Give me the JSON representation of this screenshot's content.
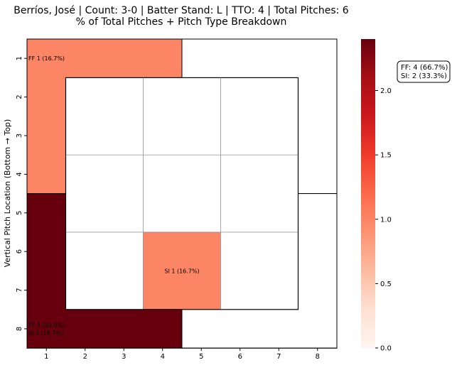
{
  "chart_data": {
    "type": "heatmap",
    "title_line1": "Berríos, José | Count: 3-0 | Batter Stand: L | TTO: 4 | Total Pitches: 6",
    "title_line2": "% of Total Pitches + Pitch Type Breakdown",
    "xlabel": "",
    "ylabel": "Vertical Pitch Location (Bottom → Top)",
    "x_ticks": [
      "1",
      "2",
      "3",
      "4",
      "5",
      "6",
      "7",
      "8"
    ],
    "y_ticks": [
      "1",
      "2",
      "3",
      "4",
      "5",
      "6",
      "7",
      "8"
    ],
    "colormap": "Reds",
    "color_low": "#fff5f0",
    "color_high": "#67000d",
    "colorbar_range": [
      0.0,
      2.4
    ],
    "colorbar_ticks": [
      "0.0",
      "0.5",
      "1.0",
      "1.5",
      "2.0"
    ],
    "zones": [
      {
        "label": "FF 1 (16.7%)",
        "value": 1,
        "region": "top-left outer",
        "cols": [
          1,
          4
        ],
        "rows": [
          1,
          4
        ]
      },
      {
        "label": "",
        "value": 0,
        "region": "top-right outer",
        "cols": [
          5,
          8
        ],
        "rows": [
          1,
          4
        ]
      },
      {
        "label": "FF 3 (50.0%)\nSI 1 (16.7%)",
        "value": 4,
        "region": "bottom-left outer",
        "cols": [
          1,
          4
        ],
        "rows": [
          5,
          8
        ]
      },
      {
        "label": "",
        "value": 0,
        "region": "bottom-right outer",
        "cols": [
          5,
          8
        ],
        "rows": [
          5,
          8
        ]
      },
      {
        "label": "",
        "value": 0,
        "region": "strike zone 1",
        "cols": [
          2,
          3
        ],
        "rows": [
          2,
          3
        ]
      },
      {
        "label": "",
        "value": 0,
        "region": "strike zone 2",
        "cols": [
          4,
          5
        ],
        "rows": [
          2,
          3
        ]
      },
      {
        "label": "",
        "value": 0,
        "region": "strike zone 3",
        "cols": [
          6,
          7
        ],
        "rows": [
          2,
          3
        ]
      },
      {
        "label": "",
        "value": 0,
        "region": "strike zone 4",
        "cols": [
          2,
          3
        ],
        "rows": [
          4,
          5
        ]
      },
      {
        "label": "",
        "value": 0,
        "region": "strike zone 5",
        "cols": [
          4,
          5
        ],
        "rows": [
          4,
          5
        ]
      },
      {
        "label": "",
        "value": 0,
        "region": "strike zone 6",
        "cols": [
          6,
          7
        ],
        "rows": [
          4,
          5
        ]
      },
      {
        "label": "",
        "value": 0,
        "region": "strike zone 7",
        "cols": [
          2,
          3
        ],
        "rows": [
          6,
          7
        ]
      },
      {
        "label": "SI 1 (16.7%)",
        "value": 1,
        "region": "strike zone 8",
        "cols": [
          4,
          5
        ],
        "rows": [
          6,
          7
        ]
      },
      {
        "label": "",
        "value": 0,
        "region": "strike zone 9",
        "cols": [
          6,
          7
        ],
        "rows": [
          6,
          7
        ]
      }
    ],
    "summary_lines": [
      "FF: 4 (66.7%)",
      "SI: 2 (33.3%)"
    ],
    "legend_position": "right"
  }
}
